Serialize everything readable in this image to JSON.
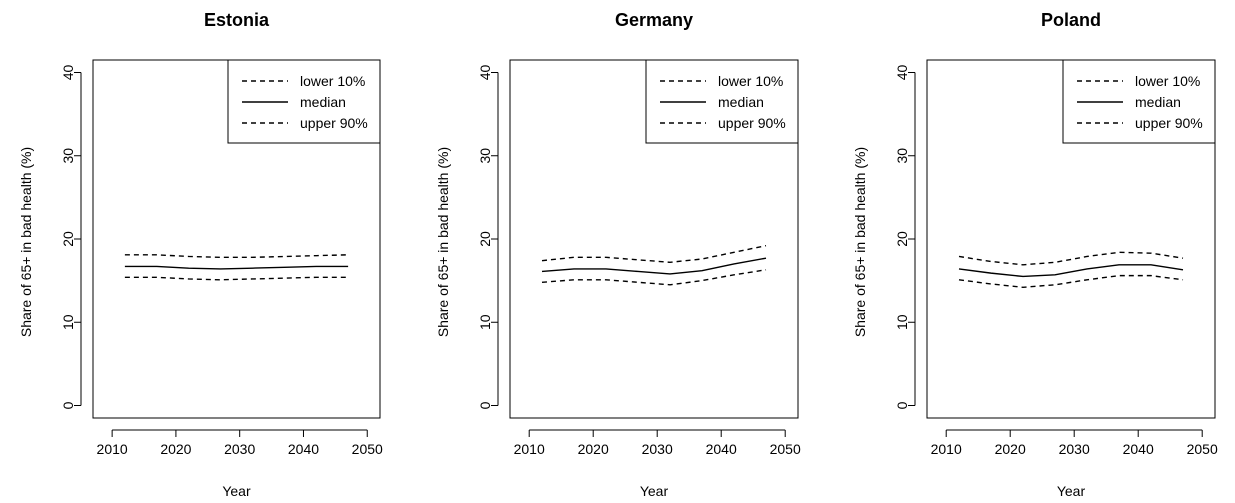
{
  "chart_data": [
    {
      "type": "line",
      "title": "Estonia",
      "xlabel": "Year",
      "ylabel": "Share of 65+ in bad health (%)",
      "xlim": [
        2007,
        2052
      ],
      "ylim": [
        -1.5,
        41.5
      ],
      "xticks": [
        2010,
        2020,
        2030,
        2040,
        2050
      ],
      "yticks": [
        0,
        10,
        20,
        30,
        40
      ],
      "legend": {
        "position": "top-right",
        "entries": [
          "lower 10%",
          "median",
          "upper 90%"
        ]
      },
      "x": [
        2012,
        2017,
        2022,
        2027,
        2032,
        2037,
        2042,
        2047
      ],
      "series": [
        {
          "name": "lower 10%",
          "style": "dashed",
          "color": "#000000",
          "values": [
            15.4,
            15.4,
            15.2,
            15.1,
            15.2,
            15.3,
            15.4,
            15.4
          ]
        },
        {
          "name": "median",
          "style": "solid",
          "color": "#000000",
          "values": [
            16.7,
            16.7,
            16.5,
            16.4,
            16.5,
            16.6,
            16.7,
            16.7
          ]
        },
        {
          "name": "upper 90%",
          "style": "dashed",
          "color": "#000000",
          "values": [
            18.1,
            18.1,
            17.9,
            17.8,
            17.8,
            17.9,
            18.0,
            18.1
          ]
        }
      ]
    },
    {
      "type": "line",
      "title": "Germany",
      "xlabel": "Year",
      "ylabel": "Share of 65+ in bad health (%)",
      "xlim": [
        2007,
        2052
      ],
      "ylim": [
        -1.5,
        41.5
      ],
      "xticks": [
        2010,
        2020,
        2030,
        2040,
        2050
      ],
      "yticks": [
        0,
        10,
        20,
        30,
        40
      ],
      "legend": {
        "position": "top-right",
        "entries": [
          "lower 10%",
          "median",
          "upper 90%"
        ]
      },
      "x": [
        2012,
        2017,
        2022,
        2027,
        2032,
        2037,
        2042,
        2047
      ],
      "series": [
        {
          "name": "lower 10%",
          "style": "dashed",
          "color": "#000000",
          "values": [
            14.8,
            15.1,
            15.1,
            14.8,
            14.5,
            15.0,
            15.7,
            16.3
          ]
        },
        {
          "name": "median",
          "style": "solid",
          "color": "#000000",
          "values": [
            16.1,
            16.4,
            16.4,
            16.1,
            15.8,
            16.2,
            17.0,
            17.7
          ]
        },
        {
          "name": "upper 90%",
          "style": "dashed",
          "color": "#000000",
          "values": [
            17.4,
            17.8,
            17.8,
            17.5,
            17.2,
            17.6,
            18.4,
            19.2
          ]
        }
      ]
    },
    {
      "type": "line",
      "title": "Poland",
      "xlabel": "Year",
      "ylabel": "Share of 65+ in bad health (%)",
      "xlim": [
        2007,
        2052
      ],
      "ylim": [
        -1.5,
        41.5
      ],
      "xticks": [
        2010,
        2020,
        2030,
        2040,
        2050
      ],
      "yticks": [
        0,
        10,
        20,
        30,
        40
      ],
      "legend": {
        "position": "top-right",
        "entries": [
          "lower 10%",
          "median",
          "upper 90%"
        ]
      },
      "x": [
        2012,
        2017,
        2022,
        2027,
        2032,
        2037,
        2042,
        2047
      ],
      "series": [
        {
          "name": "lower 10%",
          "style": "dashed",
          "color": "#000000",
          "values": [
            15.1,
            14.6,
            14.2,
            14.5,
            15.1,
            15.6,
            15.6,
            15.1
          ]
        },
        {
          "name": "median",
          "style": "solid",
          "color": "#000000",
          "values": [
            16.4,
            15.9,
            15.5,
            15.7,
            16.4,
            16.9,
            16.9,
            16.3
          ]
        },
        {
          "name": "upper 90%",
          "style": "dashed",
          "color": "#000000",
          "values": [
            17.9,
            17.3,
            16.9,
            17.2,
            17.9,
            18.4,
            18.3,
            17.7
          ]
        }
      ]
    }
  ]
}
